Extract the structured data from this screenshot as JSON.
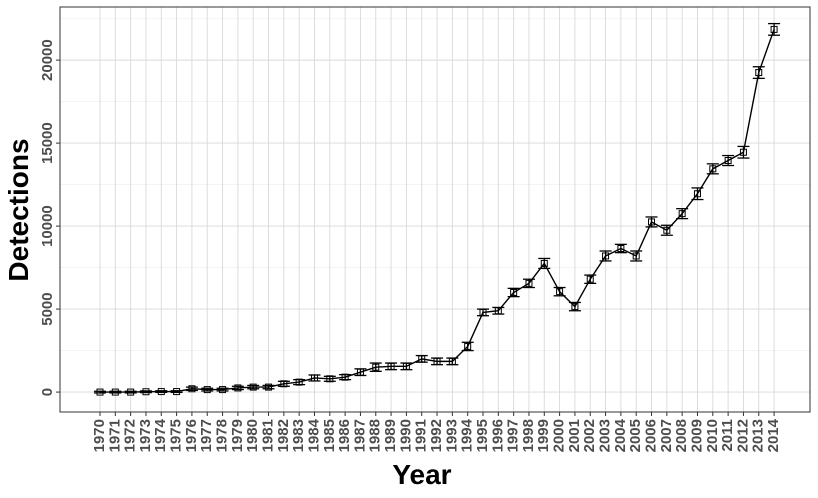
{
  "chart_data": {
    "type": "line",
    "xlabel": "Year",
    "ylabel": "Detections",
    "ylim": [
      -1200,
      23200
    ],
    "y_ticks": [
      0,
      5000,
      10000,
      15000,
      20000
    ],
    "grid": true,
    "legend": "none",
    "categories": [
      "1970",
      "1971",
      "1972",
      "1973",
      "1974",
      "1975",
      "1976",
      "1977",
      "1978",
      "1979",
      "1980",
      "1981",
      "1982",
      "1983",
      "1984",
      "1985",
      "1986",
      "1987",
      "1988",
      "1989",
      "1990",
      "1991",
      "1992",
      "1993",
      "1994",
      "1995",
      "1996",
      "1997",
      "1998",
      "1999",
      "2000",
      "2001",
      "2002",
      "2003",
      "2004",
      "2005",
      "2006",
      "2007",
      "2008",
      "2009",
      "2010",
      "2011",
      "2012",
      "2013",
      "2014"
    ],
    "series": [
      {
        "values": [
          0,
          0,
          0,
          20,
          30,
          30,
          200,
          150,
          150,
          250,
          300,
          300,
          500,
          600,
          850,
          800,
          900,
          1200,
          1500,
          1550,
          1550,
          2000,
          1850,
          1850,
          2750,
          4800,
          4900,
          6000,
          6550,
          7750,
          6050,
          5150,
          6800,
          8200,
          8650,
          8200,
          10250,
          9750,
          10750,
          11950,
          13450,
          13950,
          14450,
          19250,
          21850
        ],
        "error": [
          50,
          50,
          50,
          50,
          50,
          50,
          100,
          80,
          80,
          100,
          100,
          100,
          150,
          150,
          180,
          150,
          150,
          200,
          250,
          200,
          200,
          200,
          200,
          200,
          250,
          200,
          200,
          250,
          250,
          300,
          250,
          250,
          250,
          300,
          250,
          300,
          300,
          300,
          300,
          350,
          300,
          300,
          350,
          350,
          350
        ]
      }
    ]
  },
  "colors": {
    "line": "#000000",
    "panel_border": "#333333",
    "grid": "#d9d9d9",
    "tick_text": "#4d4d4d"
  }
}
